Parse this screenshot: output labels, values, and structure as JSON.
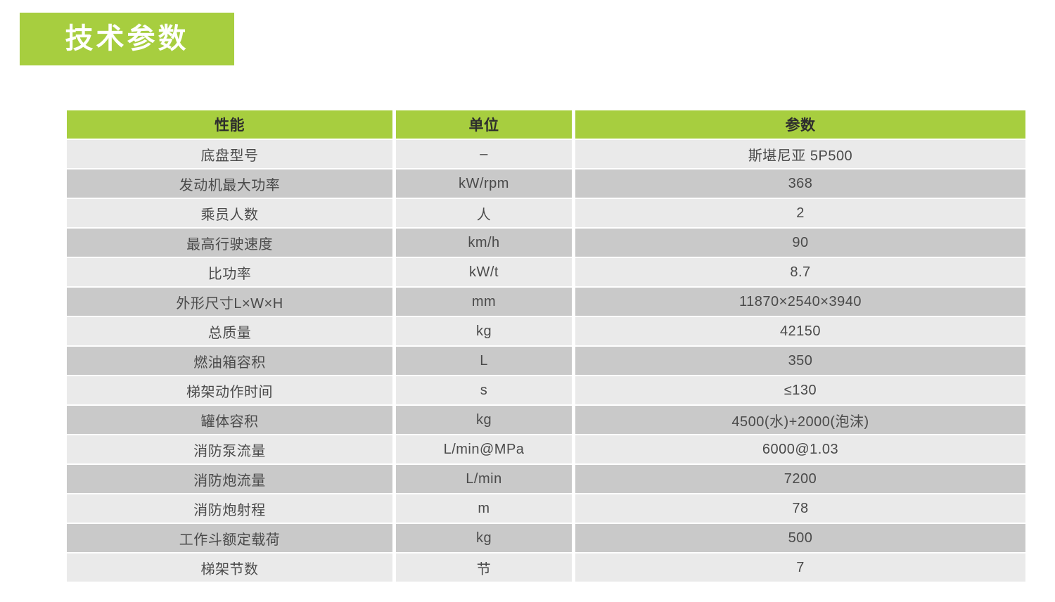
{
  "title": "技术参数",
  "colors": {
    "accent_green": "#a7ce3f",
    "row_light": "#eaeaea",
    "row_dark": "#c9c9c9",
    "header_text": "#2d2d2d",
    "cell_text": "#4a4a4a",
    "title_text": "#ffffff"
  },
  "table": {
    "headers": [
      "性能",
      "单位",
      "参数"
    ],
    "rows": [
      [
        "底盘型号",
        "–",
        "斯堪尼亚 5P500"
      ],
      [
        "发动机最大功率",
        "kW/rpm",
        "368"
      ],
      [
        "乘员人数",
        "人",
        "2"
      ],
      [
        "最高行驶速度",
        "km/h",
        "90"
      ],
      [
        "比功率",
        "kW/t",
        "8.7"
      ],
      [
        "外形尺寸L×W×H",
        "mm",
        "11870×2540×3940"
      ],
      [
        "总质量",
        "kg",
        "42150"
      ],
      [
        "燃油箱容积",
        "L",
        "350"
      ],
      [
        "梯架动作时间",
        "s",
        "≤130"
      ],
      [
        "罐体容积",
        "kg",
        "4500(水)+2000(泡沫)"
      ],
      [
        "消防泵流量",
        "L/min@MPa",
        "6000@1.03"
      ],
      [
        "消防炮流量",
        "L/min",
        "7200"
      ],
      [
        "消防炮射程",
        "m",
        "78"
      ],
      [
        "工作斗额定载荷",
        "kg",
        "500"
      ],
      [
        "梯架节数",
        "节",
        "7"
      ]
    ]
  }
}
